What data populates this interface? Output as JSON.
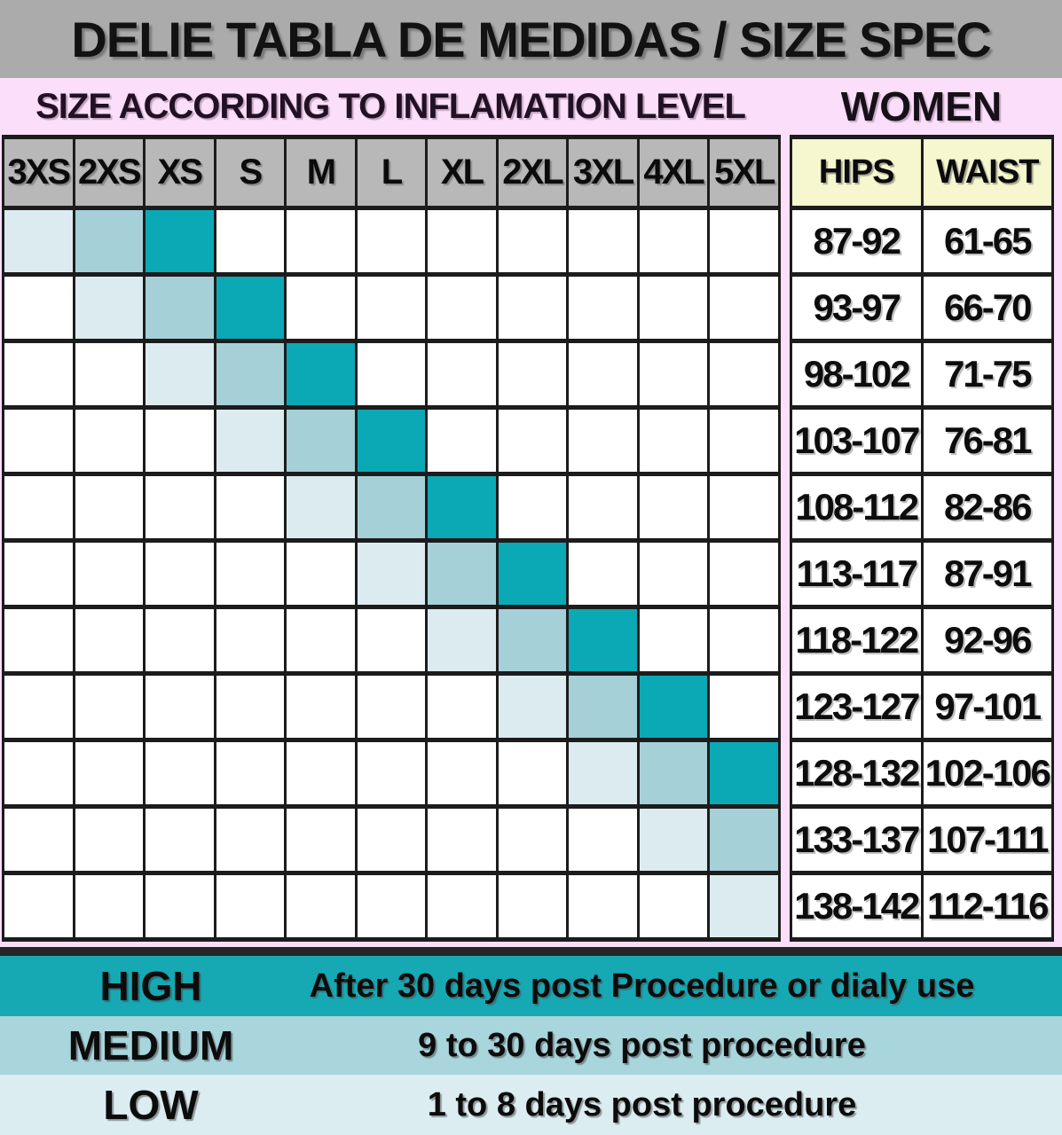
{
  "title": "DELIE TABLA DE MEDIDAS / SIZE SPEC",
  "subtitle": "SIZE ACCORDING TO INFLAMATION LEVEL",
  "women_label": "WOMEN",
  "chart_data": [
    {
      "type": "heatmap",
      "title": "SIZE ACCORDING TO INFLAMATION LEVEL",
      "columns": [
        "3XS",
        "2XS",
        "XS",
        "S",
        "M",
        "L",
        "XL",
        "2XL",
        "3XL",
        "4XL",
        "5XL"
      ],
      "levels": [
        "low",
        "medium",
        "high"
      ],
      "row_levels": [
        {
          "low": 0,
          "medium": 1,
          "high": 2
        },
        {
          "low": 1,
          "medium": 2,
          "high": 3
        },
        {
          "low": 2,
          "medium": 3,
          "high": 4
        },
        {
          "low": 3,
          "medium": 4,
          "high": 5
        },
        {
          "low": 4,
          "medium": 5,
          "high": 6
        },
        {
          "low": 5,
          "medium": 6,
          "high": 7
        },
        {
          "low": 6,
          "medium": 7,
          "high": 8
        },
        {
          "low": 7,
          "medium": 8,
          "high": 9
        },
        {
          "low": 8,
          "medium": 9,
          "high": 10
        },
        {
          "low": 9,
          "medium": 10,
          "high": null
        },
        {
          "low": 10,
          "medium": null,
          "high": null
        }
      ],
      "level_colors": {
        "low": "#dcebf0",
        "medium": "#a5d0d8",
        "high": "#0ba9b5"
      }
    },
    {
      "type": "table",
      "title": "WOMEN",
      "columns": [
        "HIPS",
        "WAIST"
      ],
      "rows": [
        [
          "87-92",
          "61-65"
        ],
        [
          "93-97",
          "66-70"
        ],
        [
          "98-102",
          "71-75"
        ],
        [
          "103-107",
          "76-81"
        ],
        [
          "108-112",
          "82-86"
        ],
        [
          "113-117",
          "87-91"
        ],
        [
          "118-122",
          "92-96"
        ],
        [
          "123-127",
          "97-101"
        ],
        [
          "128-132",
          "102-106"
        ],
        [
          "133-137",
          "107-111"
        ],
        [
          "138-142",
          "112-116"
        ]
      ]
    }
  ],
  "legend": [
    {
      "level": "HIGH",
      "description": "After 30 days post Procedure or dialy use"
    },
    {
      "level": "MEDIUM",
      "description": "9 to 30 days post procedure"
    },
    {
      "level": "LOW",
      "description": "1 to 8 days post procedure"
    }
  ],
  "colors": {
    "title_bar": "#ababab",
    "background_pink": "#fbdefa",
    "grid_header": "#b8b8b8",
    "measure_header": "#f6f6cf",
    "level_high": "#0ba9b5",
    "level_medium": "#a5d0d8",
    "level_low": "#dcebf0",
    "legend_high": "#16a9b4",
    "legend_medium": "#a9d5dc",
    "legend_low": "#dcedf2",
    "border": "#1c1c1c",
    "legend_strip": "#262626"
  }
}
